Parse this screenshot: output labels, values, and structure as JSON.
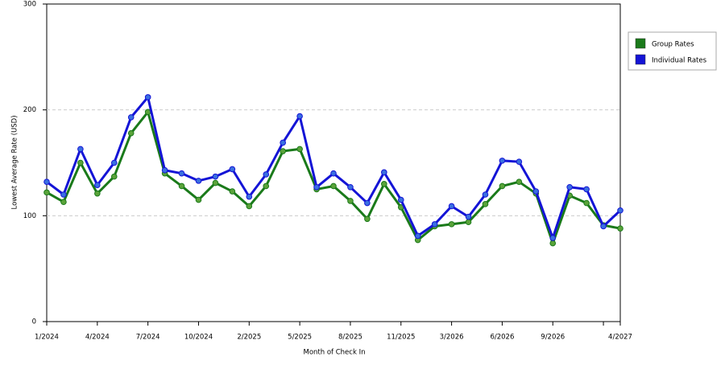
{
  "chart_data": {
    "type": "line",
    "x_label": "Month of Check In",
    "y_label": "Lowest Average Rate (USD)",
    "categories": [
      "1/2024",
      null,
      null,
      "4/2024",
      null,
      null,
      "7/2024",
      null,
      null,
      "10/2024",
      null,
      null,
      "2/2025",
      null,
      null,
      "5/2025",
      null,
      null,
      "8/2025",
      null,
      null,
      "11/2025",
      null,
      null,
      "3/2026",
      null,
      null,
      "6/2026",
      null,
      null,
      "9/2026",
      null,
      null,
      null,
      "4/2027"
    ],
    "series": [
      {
        "name": "Group Rates",
        "color": "#1a7a1a",
        "marker": "#5aa33a",
        "values": [
          122,
          113,
          150,
          121,
          137,
          178,
          198,
          140,
          128,
          115,
          131,
          123,
          109,
          128,
          161,
          163,
          125,
          128,
          114,
          97,
          130,
          108,
          77,
          90,
          92,
          94,
          111,
          128,
          132,
          121,
          74,
          119,
          112,
          91,
          88
        ]
      },
      {
        "name": "Individual Rates",
        "color": "#1414d6",
        "marker": "#3a6fe0",
        "values": [
          132,
          120,
          163,
          129,
          150,
          193,
          212,
          143,
          140,
          133,
          137,
          144,
          118,
          139,
          169,
          194,
          127,
          140,
          127,
          112,
          141,
          115,
          81,
          92,
          109,
          99,
          120,
          152,
          151,
          123,
          79,
          127,
          125,
          90,
          105
        ]
      }
    ],
    "ylim": [
      0,
      300
    ],
    "yticks": [
      0,
      100,
      200,
      300
    ],
    "grid": true,
    "legend": "right"
  }
}
